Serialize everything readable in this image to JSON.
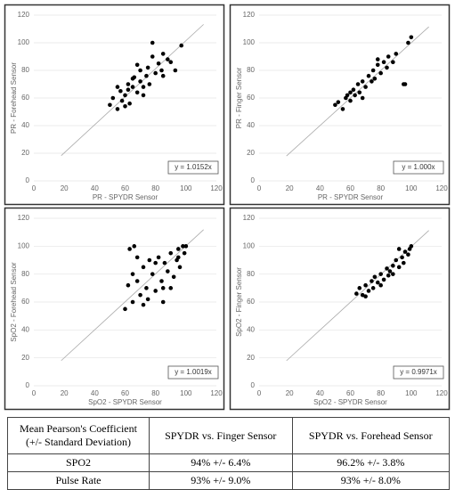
{
  "chart_data": [
    {
      "type": "scatter",
      "x_label": "PR - SPYDR Sensor",
      "y_label": "PR - Forehead Sensor",
      "x": [
        50,
        52,
        55,
        57,
        58,
        60,
        62,
        63,
        65,
        66,
        68,
        70,
        70,
        72,
        74,
        75,
        76,
        78,
        80,
        82,
        84,
        85,
        88,
        90,
        93,
        97,
        55,
        60,
        65,
        72,
        78,
        85,
        62,
        68
      ],
      "values": [
        55,
        60,
        52,
        65,
        58,
        62,
        70,
        56,
        68,
        75,
        64,
        72,
        80,
        68,
        76,
        82,
        70,
        90,
        78,
        85,
        80,
        92,
        88,
        86,
        80,
        98,
        68,
        54,
        74,
        62,
        100,
        76,
        66,
        84
      ],
      "color": "#000000",
      "xlim": [
        0,
        120
      ],
      "ylim": [
        0,
        120
      ],
      "xticks": [
        0,
        20,
        40,
        60,
        80,
        100,
        120
      ],
      "yticks": [
        0,
        20,
        40,
        60,
        80,
        100,
        120
      ],
      "grid": true,
      "trendline": {
        "label": "y = 1.0152x",
        "slope": 1.0152
      }
    },
    {
      "type": "scatter",
      "x_label": "PR - SPYDR Sensor",
      "y_label": "PR - Finger Sensor",
      "x": [
        50,
        52,
        55,
        57,
        58,
        60,
        62,
        63,
        65,
        66,
        68,
        70,
        72,
        74,
        75,
        76,
        78,
        80,
        82,
        84,
        85,
        88,
        90,
        95,
        96,
        98,
        100,
        60,
        68,
        78
      ],
      "values": [
        55,
        57,
        52,
        60,
        62,
        58,
        66,
        62,
        70,
        64,
        72,
        68,
        76,
        72,
        80,
        74,
        84,
        78,
        86,
        82,
        90,
        86,
        92,
        70,
        70,
        100,
        104,
        64,
        60,
        88
      ],
      "color": "#000000",
      "xlim": [
        0,
        120
      ],
      "ylim": [
        0,
        120
      ],
      "xticks": [
        0,
        20,
        40,
        60,
        80,
        100,
        120
      ],
      "yticks": [
        0,
        20,
        40,
        60,
        80,
        100,
        120
      ],
      "grid": true,
      "trendline": {
        "label": "y = 1.000x",
        "slope": 1.0
      }
    },
    {
      "type": "scatter",
      "x_label": "SpO2 - SPYDR Sensor",
      "y_label": "SpO2 - Forehead Sensor",
      "x": [
        60,
        62,
        63,
        65,
        66,
        68,
        70,
        72,
        74,
        75,
        76,
        78,
        80,
        82,
        84,
        85,
        86,
        88,
        90,
        92,
        94,
        95,
        96,
        98,
        99,
        100,
        65,
        68,
        72,
        80,
        85,
        90,
        95
      ],
      "values": [
        55,
        72,
        98,
        60,
        100,
        75,
        65,
        85,
        70,
        62,
        90,
        80,
        68,
        92,
        75,
        60,
        88,
        82,
        95,
        78,
        90,
        98,
        85,
        100,
        95,
        100,
        80,
        92,
        58,
        88,
        70,
        70,
        92
      ],
      "color": "#000000",
      "xlim": [
        0,
        120
      ],
      "ylim": [
        0,
        120
      ],
      "xticks": [
        0,
        20,
        40,
        60,
        80,
        100,
        120
      ],
      "yticks": [
        0,
        20,
        40,
        60,
        80,
        100,
        120
      ],
      "grid": true,
      "trendline": {
        "label": "y = 1.0019x",
        "slope": 1.0019
      }
    },
    {
      "type": "scatter",
      "x_label": "SpO2 - SPYDR Sensor",
      "y_label": "SpO2 - Finger Sensor",
      "x": [
        64,
        66,
        68,
        70,
        72,
        74,
        75,
        76,
        78,
        80,
        82,
        84,
        85,
        86,
        88,
        90,
        92,
        94,
        95,
        96,
        98,
        99,
        100,
        70,
        80,
        88,
        92
      ],
      "values": [
        66,
        70,
        65,
        72,
        68,
        75,
        70,
        78,
        74,
        80,
        76,
        84,
        79,
        82,
        86,
        90,
        85,
        92,
        88,
        96,
        94,
        98,
        100,
        64,
        72,
        80,
        98
      ],
      "color": "#000000",
      "xlim": [
        0,
        120
      ],
      "ylim": [
        0,
        120
      ],
      "xticks": [
        0,
        20,
        40,
        60,
        80,
        100,
        120
      ],
      "yticks": [
        0,
        20,
        40,
        60,
        80,
        100,
        120
      ],
      "grid": true,
      "trendline": {
        "label": "y = 0.9971x",
        "slope": 0.9971
      }
    }
  ],
  "table": {
    "header": [
      "Mean Pearson's Coefficient (+/- Standard Deviation)",
      "SPYDR vs. Finger Sensor",
      "SPYDR vs. Forehead Sensor"
    ],
    "rows": [
      [
        "SPO2",
        "94% +/- 6.4%",
        "96.2% +/- 3.8%"
      ],
      [
        "Pulse Rate",
        "93% +/- 9.0%",
        "93% +/- 8.0%"
      ]
    ]
  }
}
